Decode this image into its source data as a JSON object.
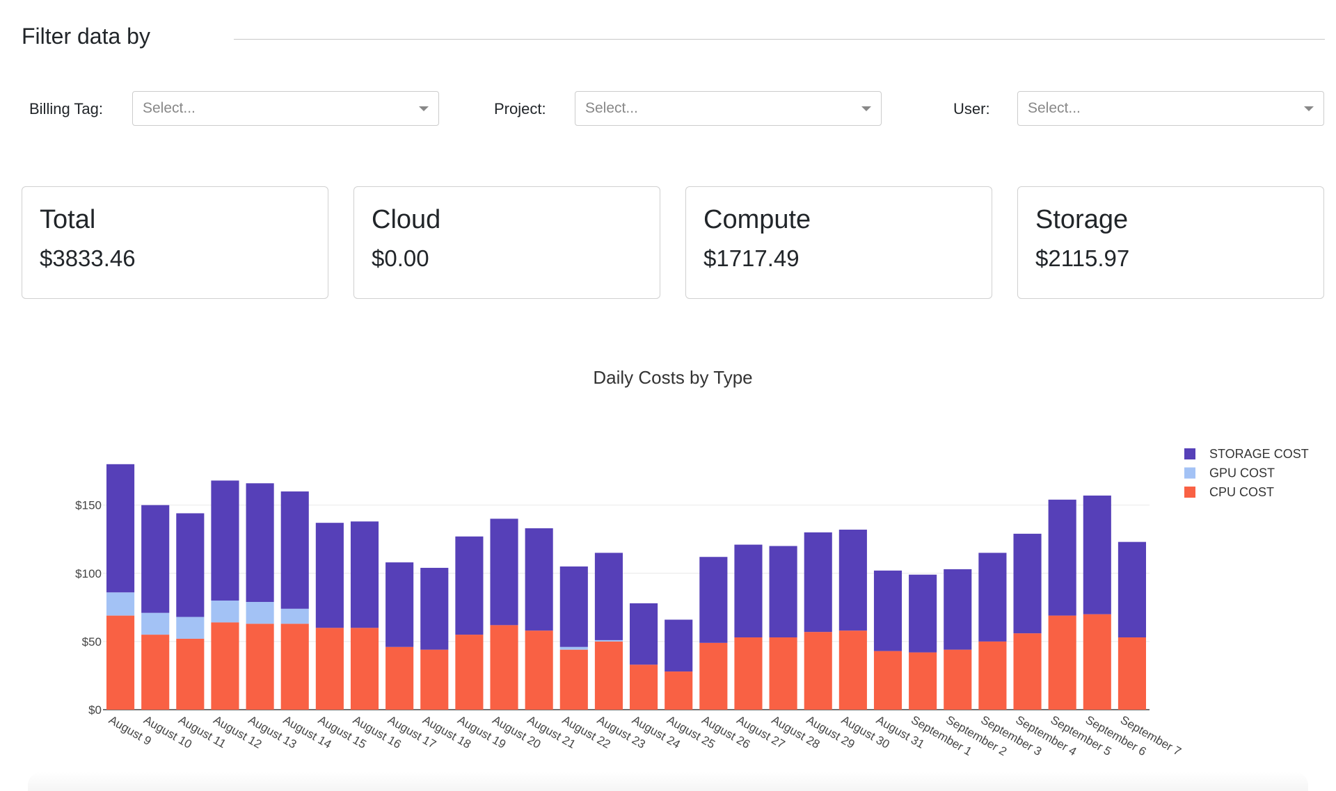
{
  "filter": {
    "title": "Filter data by",
    "billing_tag": {
      "label": "Billing Tag:",
      "placeholder": "Select..."
    },
    "project": {
      "label": "Project:",
      "placeholder": "Select..."
    },
    "user": {
      "label": "User:",
      "placeholder": "Select..."
    }
  },
  "cards": [
    {
      "title": "Total",
      "value": "$3833.46"
    },
    {
      "title": "Cloud",
      "value": "$0.00"
    },
    {
      "title": "Compute",
      "value": "$1717.49"
    },
    {
      "title": "Storage",
      "value": "$2115.97"
    }
  ],
  "colors": {
    "storage": "#5640b8",
    "gpu": "#a3c2f5",
    "cpu": "#f96144",
    "grid": "#ececec"
  },
  "chart_data": {
    "type": "bar",
    "stacked": true,
    "title": "Daily Costs by Type",
    "xlabel": "",
    "ylabel": "",
    "ylim": [
      0,
      185
    ],
    "yticks": [
      0,
      50,
      100,
      150
    ],
    "ytick_labels": [
      "$0",
      "$50",
      "$100",
      "$150"
    ],
    "grid": true,
    "legend_position": "top-right",
    "categories": [
      "August 9",
      "August 10",
      "August 11",
      "August 12",
      "August 13",
      "August 14",
      "August 15",
      "August 16",
      "August 17",
      "August 18",
      "August 19",
      "August 20",
      "August 21",
      "August 22",
      "August 23",
      "August 24",
      "August 25",
      "August 26",
      "August 27",
      "August 28",
      "August 29",
      "August 30",
      "August 31",
      "September 1",
      "September 2",
      "September 3",
      "September 4",
      "September 5",
      "September 6",
      "September 7"
    ],
    "series": [
      {
        "name": "CPU COST",
        "color": "#f96144",
        "values": [
          69,
          55,
          52,
          64,
          63,
          63,
          60,
          60,
          46,
          44,
          55,
          62,
          58,
          44,
          50,
          33,
          28,
          49,
          53,
          53,
          57,
          58,
          43,
          42,
          44,
          50,
          56,
          69,
          70,
          53
        ]
      },
      {
        "name": "GPU COST",
        "color": "#a3c2f5",
        "values": [
          17,
          16,
          16,
          16,
          16,
          11,
          0,
          0,
          0,
          0,
          0,
          0,
          0,
          2,
          1,
          0,
          0,
          0,
          0,
          0,
          0,
          0,
          0,
          0,
          0,
          0,
          0,
          0,
          0,
          0
        ]
      },
      {
        "name": "STORAGE COST",
        "color": "#5640b8",
        "values": [
          94,
          79,
          76,
          88,
          87,
          86,
          77,
          78,
          62,
          60,
          72,
          78,
          75,
          59,
          64,
          45,
          38,
          63,
          68,
          67,
          73,
          74,
          59,
          57,
          59,
          65,
          73,
          85,
          87,
          70
        ]
      }
    ],
    "legend_order": [
      "STORAGE COST",
      "GPU COST",
      "CPU COST"
    ]
  }
}
